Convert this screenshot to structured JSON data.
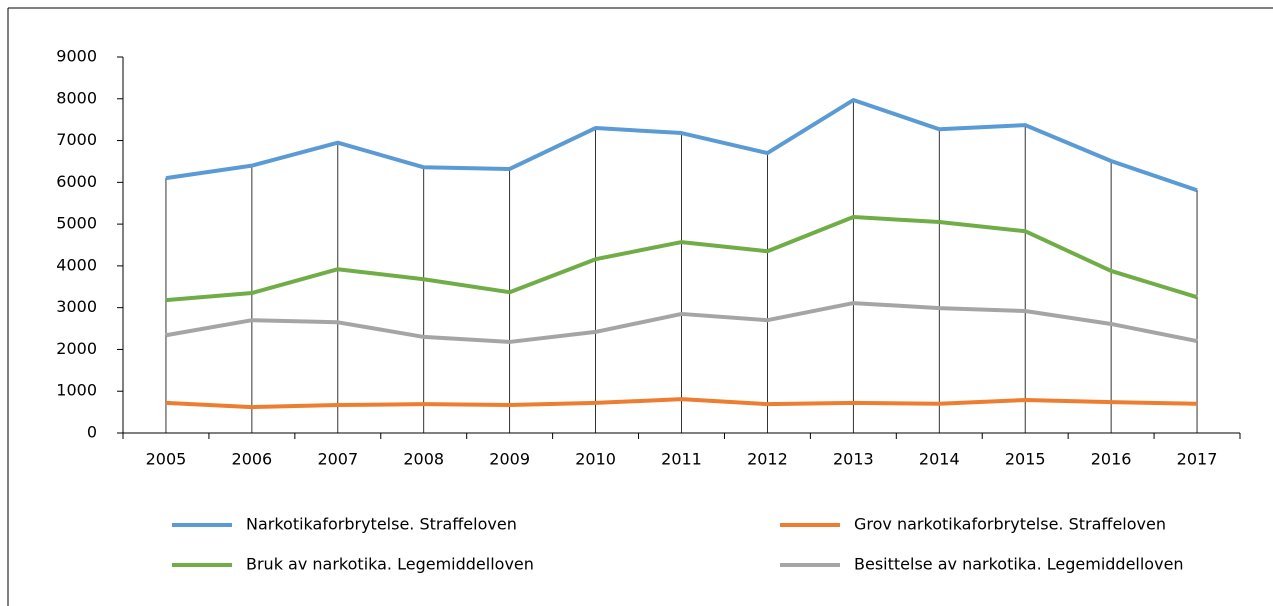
{
  "chart_data": {
    "type": "line",
    "categories": [
      "2005",
      "2006",
      "2007",
      "2008",
      "2009",
      "2010",
      "2011",
      "2012",
      "2013",
      "2014",
      "2015",
      "2016",
      "2017"
    ],
    "series": [
      {
        "name": "Narkotikaforbrytelse. Straffeloven",
        "color": "#5b9bd5",
        "values": [
          6100,
          6400,
          6950,
          6360,
          6320,
          7300,
          7180,
          6700,
          7970,
          7270,
          7370,
          6510,
          5810
        ]
      },
      {
        "name": "Grov narkotikaforbrytelse. Straffeloven",
        "color": "#ed7d31",
        "values": [
          720,
          620,
          670,
          690,
          670,
          720,
          810,
          690,
          720,
          700,
          790,
          740,
          700
        ]
      },
      {
        "name": "Bruk av narkotika. Legemiddelloven",
        "color": "#70ad47",
        "values": [
          3180,
          3350,
          3920,
          3680,
          3370,
          4160,
          4570,
          4350,
          5170,
          5050,
          4830,
          3880,
          3250
        ]
      },
      {
        "name": "Besittelse av narkotika. Legemiddelloven",
        "color": "#a5a5a5",
        "values": [
          2340,
          2700,
          2650,
          2300,
          2180,
          2420,
          2850,
          2700,
          3110,
          2990,
          2920,
          2610,
          2200
        ]
      }
    ],
    "ylim": [
      0,
      9000
    ],
    "yticks": [
      0,
      1000,
      2000,
      3000,
      4000,
      5000,
      6000,
      7000,
      8000,
      9000
    ],
    "drop_lines": true
  }
}
